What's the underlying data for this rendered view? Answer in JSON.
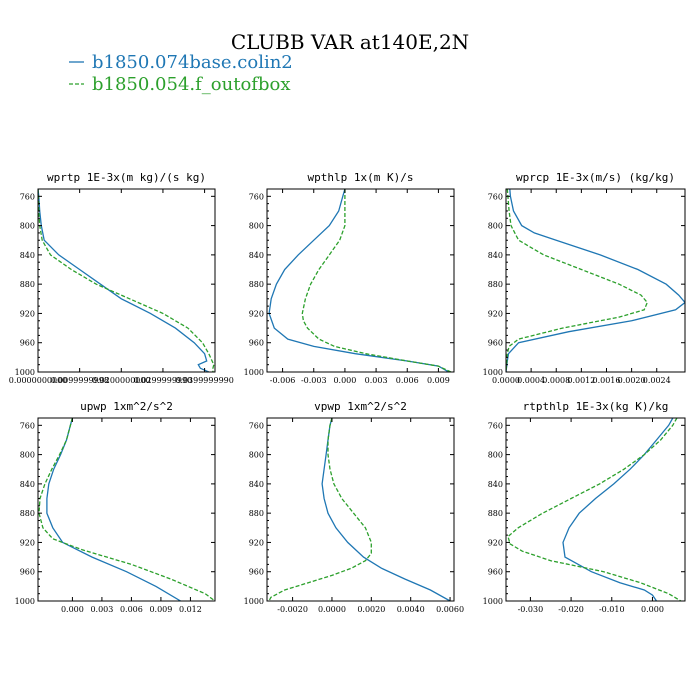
{
  "figure": {
    "title": "CLUBB VAR at140E,2N",
    "legend": [
      {
        "label": "b1850.074base.colin2",
        "color": "#1f77b4",
        "dash": "solid"
      },
      {
        "label": "b1850.054.f_outofbox",
        "color": "#2ca02c",
        "dash": "dashed"
      }
    ]
  },
  "chart_data": [
    {
      "type": "line",
      "title": "wprtp  1E-3x(m kg)/(s kg)",
      "ylim": [
        750,
        1000
      ],
      "y_reversed": true,
      "yticks": [
        "760",
        "800",
        "840",
        "880",
        "920",
        "960",
        "1000"
      ],
      "xlim": [
        0.0,
        0.0425
      ],
      "xticks": [
        {
          "v": 0.0,
          "label": "0.0000000000"
        },
        {
          "v": 0.01,
          "label": "0.0099999998"
        },
        {
          "v": 0.02,
          "label": "0.0200000000"
        },
        {
          "v": 0.03,
          "label": "0.0299999990"
        },
        {
          "v": 0.04,
          "label": "0.0399999990"
        }
      ],
      "series": [
        {
          "color": "#1f77b4",
          "dash": "solid",
          "p": [
            750,
            760,
            780,
            800,
            820,
            840,
            860,
            880,
            900,
            920,
            940,
            960,
            975,
            985,
            990,
            995,
            1000
          ],
          "x": [
            0.0,
            0.0002,
            0.0004,
            0.0008,
            0.0015,
            0.005,
            0.01,
            0.015,
            0.02,
            0.027,
            0.033,
            0.0375,
            0.04,
            0.0405,
            0.0385,
            0.039,
            0.041
          ]
        },
        {
          "color": "#2ca02c",
          "dash": "dashed",
          "p": [
            750,
            760,
            780,
            800,
            820,
            840,
            860,
            880,
            900,
            920,
            940,
            960,
            975,
            985,
            990,
            995,
            1000
          ],
          "x": [
            0.0,
            0.0001,
            0.0002,
            0.0004,
            0.001,
            0.003,
            0.008,
            0.014,
            0.022,
            0.03,
            0.036,
            0.0395,
            0.041,
            0.0418,
            0.0422,
            0.042,
            0.042
          ]
        }
      ]
    },
    {
      "type": "line",
      "title": "wpthlp  1x(m K)/s",
      "ylim": [
        750,
        1000
      ],
      "y_reversed": true,
      "yticks": [
        "760",
        "800",
        "840",
        "880",
        "920",
        "960",
        "1000"
      ],
      "xlim": [
        -0.0075,
        0.0105
      ],
      "xticks": [
        {
          "v": -0.006,
          "label": "-0.006"
        },
        {
          "v": -0.003,
          "label": "-0.003"
        },
        {
          "v": 0.0,
          "label": "0.000"
        },
        {
          "v": 0.003,
          "label": "0.003"
        },
        {
          "v": 0.006,
          "label": "0.006"
        },
        {
          "v": 0.009,
          "label": "0.009"
        }
      ],
      "series": [
        {
          "color": "#1f77b4",
          "dash": "solid",
          "p": [
            750,
            760,
            780,
            800,
            820,
            840,
            860,
            880,
            900,
            920,
            940,
            955,
            965,
            975,
            985,
            992,
            1000
          ],
          "x": [
            0.0,
            -0.0002,
            -0.0006,
            -0.0015,
            -0.003,
            -0.0045,
            -0.0058,
            -0.0066,
            -0.0071,
            -0.0073,
            -0.0068,
            -0.0055,
            -0.003,
            0.001,
            0.006,
            0.009,
            0.01
          ]
        },
        {
          "color": "#2ca02c",
          "dash": "dashed",
          "p": [
            750,
            760,
            780,
            800,
            820,
            840,
            860,
            880,
            900,
            920,
            930,
            940,
            955,
            965,
            975,
            985,
            992,
            1000
          ],
          "x": [
            0.0,
            0.0,
            0.0,
            0.0,
            -0.0005,
            -0.0015,
            -0.0025,
            -0.0033,
            -0.0038,
            -0.0041,
            -0.004,
            -0.0036,
            -0.0025,
            -0.001,
            0.002,
            0.006,
            0.009,
            0.0102
          ]
        }
      ]
    },
    {
      "type": "line",
      "title": "wprcp  1E-3x(m/s) (kg/kg)",
      "ylim": [
        750,
        1000
      ],
      "y_reversed": true,
      "yticks": [
        "760",
        "800",
        "840",
        "880",
        "920",
        "960",
        "1000"
      ],
      "xlim": [
        0.0,
        0.00285
      ],
      "xticks": [
        {
          "v": 0.0,
          "label": "0.0000"
        },
        {
          "v": 0.0004,
          "label": "0.0004"
        },
        {
          "v": 0.0008,
          "label": "0.0008"
        },
        {
          "v": 0.0012,
          "label": "0.0012"
        },
        {
          "v": 0.0016,
          "label": "0.0016"
        },
        {
          "v": 0.002,
          "label": "0.0020"
        },
        {
          "v": 0.0024,
          "label": "0.0024"
        }
      ],
      "series": [
        {
          "color": "#1f77b4",
          "dash": "solid",
          "p": [
            750,
            760,
            780,
            800,
            810,
            820,
            840,
            860,
            880,
            895,
            905,
            915,
            930,
            945,
            960,
            975,
            985,
            1000
          ],
          "x": [
            6e-05,
            7e-05,
            0.00012,
            0.00025,
            0.00045,
            0.0008,
            0.0015,
            0.0021,
            0.00255,
            0.00275,
            0.00285,
            0.0027,
            0.002,
            0.001,
            0.0002,
            4e-05,
            2e-05,
            0.0
          ]
        },
        {
          "color": "#2ca02c",
          "dash": "dashed",
          "p": [
            750,
            760,
            780,
            800,
            820,
            840,
            860,
            880,
            895,
            905,
            915,
            925,
            940,
            955,
            965,
            975,
            990,
            1000
          ],
          "x": [
            2e-05,
            3e-05,
            5e-05,
            8e-05,
            0.0002,
            0.0006,
            0.0012,
            0.0018,
            0.00215,
            0.00225,
            0.0022,
            0.0018,
            0.0009,
            0.0002,
            5e-05,
            2e-05,
            1e-05,
            0.0
          ]
        }
      ]
    },
    {
      "type": "line",
      "title": "upwp  1xm^2/s^2",
      "ylim": [
        750,
        1000
      ],
      "y_reversed": true,
      "yticks": [
        "760",
        "800",
        "840",
        "880",
        "920",
        "960",
        "1000"
      ],
      "xlim": [
        -0.0035,
        0.0145
      ],
      "xticks": [
        {
          "v": 0.0,
          "label": "0.000"
        },
        {
          "v": 0.003,
          "label": "0.003"
        },
        {
          "v": 0.006,
          "label": "0.006"
        },
        {
          "v": 0.009,
          "label": "0.009"
        },
        {
          "v": 0.012,
          "label": "0.012"
        }
      ],
      "series": [
        {
          "color": "#1f77b4",
          "dash": "solid",
          "p": [
            750,
            760,
            780,
            800,
            820,
            840,
            860,
            880,
            900,
            920,
            940,
            960,
            980,
            1000
          ],
          "x": [
            0.0,
            -0.0002,
            -0.0006,
            -0.0012,
            -0.0019,
            -0.0024,
            -0.0026,
            -0.0026,
            -0.002,
            -0.001,
            0.002,
            0.0055,
            0.0085,
            0.011
          ]
        },
        {
          "color": "#2ca02c",
          "dash": "dashed",
          "p": [
            750,
            760,
            780,
            800,
            820,
            840,
            860,
            880,
            900,
            915,
            930,
            950,
            970,
            990,
            1000
          ],
          "x": [
            0.0,
            -0.0002,
            -0.0006,
            -0.0013,
            -0.0021,
            -0.0028,
            -0.0033,
            -0.0034,
            -0.003,
            -0.002,
            0.001,
            0.006,
            0.01,
            0.0135,
            0.0145
          ]
        }
      ]
    },
    {
      "type": "line",
      "title": "vpwp  1xm^2/s^2",
      "ylim": [
        750,
        1000
      ],
      "y_reversed": true,
      "yticks": [
        "760",
        "800",
        "840",
        "880",
        "920",
        "960",
        "1000"
      ],
      "xlim": [
        -0.0033,
        0.0062
      ],
      "xticks": [
        {
          "v": -0.002,
          "label": "-0.0020"
        },
        {
          "v": 0.0,
          "label": "0.0000"
        },
        {
          "v": 0.002,
          "label": "0.0020"
        },
        {
          "v": 0.004,
          "label": "0.0040"
        },
        {
          "v": 0.006,
          "label": "0.0060"
        }
      ],
      "series": [
        {
          "color": "#1f77b4",
          "dash": "solid",
          "p": [
            750,
            760,
            780,
            800,
            820,
            840,
            860,
            880,
            900,
            920,
            940,
            955,
            970,
            985,
            1000
          ],
          "x": [
            0.0,
            -0.0001,
            -0.0002,
            -0.0003,
            -0.0004,
            -0.0005,
            -0.0004,
            -0.0002,
            0.0002,
            0.0008,
            0.0016,
            0.0025,
            0.0037,
            0.005,
            0.006
          ]
        },
        {
          "color": "#2ca02c",
          "dash": "dashed",
          "p": [
            750,
            760,
            780,
            800,
            820,
            840,
            860,
            880,
            900,
            920,
            935,
            945,
            955,
            965,
            975,
            985,
            995,
            1000
          ],
          "x": [
            0.0,
            -0.0001,
            -0.0002,
            -0.0002,
            -0.0001,
            0.0001,
            0.0005,
            0.0011,
            0.0017,
            0.002,
            0.002,
            0.0017,
            0.001,
            0.0,
            -0.0012,
            -0.0024,
            -0.0031,
            -0.0032
          ]
        }
      ]
    },
    {
      "type": "line",
      "title": "rtpthlp  1E-3x(kg K)/kg",
      "ylim": [
        750,
        1000
      ],
      "y_reversed": true,
      "yticks": [
        "760",
        "800",
        "840",
        "880",
        "920",
        "960",
        "1000"
      ],
      "xlim": [
        -0.036,
        0.008
      ],
      "xticks": [
        {
          "v": -0.03,
          "label": "-0.030"
        },
        {
          "v": -0.02,
          "label": "-0.020"
        },
        {
          "v": -0.01,
          "label": "-0.010"
        },
        {
          "v": 0.0,
          "label": "0.000"
        }
      ],
      "series": [
        {
          "color": "#1f77b4",
          "dash": "solid",
          "p": [
            750,
            760,
            780,
            800,
            820,
            840,
            860,
            880,
            900,
            920,
            940,
            960,
            975,
            985,
            992,
            1000
          ],
          "x": [
            0.005,
            0.004,
            0.001,
            -0.002,
            -0.0055,
            -0.0095,
            -0.014,
            -0.018,
            -0.0205,
            -0.022,
            -0.0215,
            -0.015,
            -0.008,
            -0.002,
            0.0,
            0.001
          ]
        },
        {
          "color": "#2ca02c",
          "dash": "dashed",
          "p": [
            750,
            760,
            780,
            800,
            820,
            840,
            860,
            880,
            900,
            912,
            922,
            932,
            945,
            960,
            975,
            990,
            1000
          ],
          "x": [
            0.006,
            0.005,
            0.002,
            -0.002,
            -0.007,
            -0.013,
            -0.02,
            -0.027,
            -0.033,
            -0.0355,
            -0.035,
            -0.032,
            -0.025,
            -0.012,
            -0.003,
            0.004,
            0.007
          ]
        }
      ]
    }
  ]
}
